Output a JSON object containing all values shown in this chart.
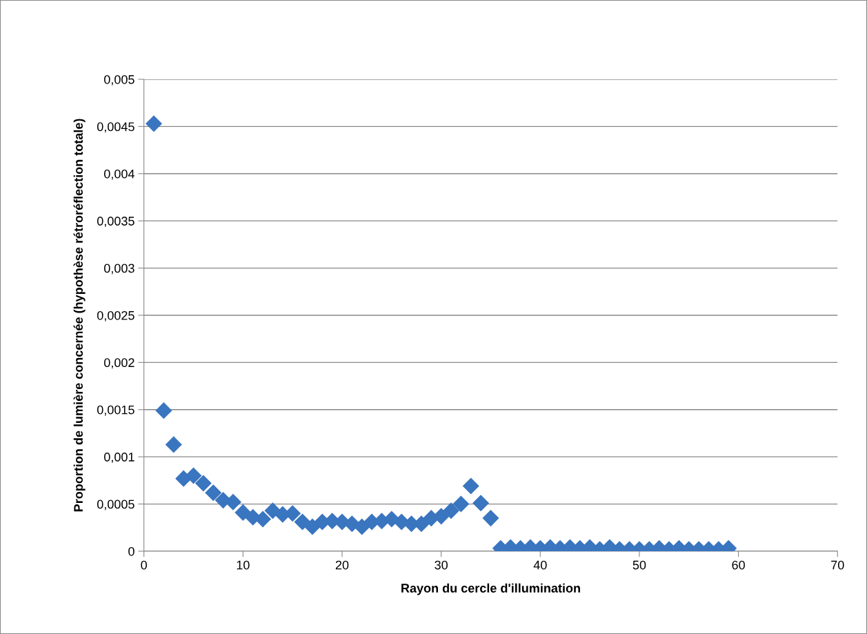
{
  "chart_data": {
    "type": "scatter",
    "xlabel": "Rayon du cercle d'illumination",
    "ylabel": "Proportion de lumière concernée (hypothèse rétroréflection totale)",
    "x": [
      1,
      2,
      3,
      4,
      5,
      6,
      7,
      8,
      9,
      10,
      11,
      12,
      13,
      14,
      15,
      16,
      17,
      18,
      19,
      20,
      21,
      22,
      23,
      24,
      25,
      26,
      27,
      28,
      29,
      30,
      31,
      32,
      33,
      34,
      35,
      36,
      37,
      38,
      39,
      40,
      41,
      42,
      43,
      44,
      45,
      46,
      47,
      48,
      49,
      50,
      51,
      52,
      53,
      54,
      55,
      56,
      57,
      58,
      59
    ],
    "series": [
      {
        "color": "#3a75bf",
        "values": [
          0.00453,
          0.00149,
          0.00113,
          0.00077,
          0.0008,
          0.00072,
          0.00062,
          0.00054,
          0.00052,
          0.00041,
          0.00036,
          0.00034,
          0.00043,
          0.00039,
          0.0004,
          0.00031,
          0.00026,
          0.00031,
          0.00032,
          0.00031,
          0.00029,
          0.00026,
          0.00031,
          0.00032,
          0.00034,
          0.00031,
          0.00029,
          0.00029,
          0.00035,
          0.00037,
          0.00043,
          0.0005,
          0.00069,
          0.00051,
          0.00035,
          3e-05,
          4e-05,
          3e-05,
          4e-05,
          3e-05,
          4e-05,
          3e-05,
          4e-05,
          3e-05,
          4e-05,
          2e-05,
          4e-05,
          2e-05,
          2e-05,
          2e-05,
          2e-05,
          3e-05,
          2e-05,
          3e-05,
          2e-05,
          2e-05,
          2e-05,
          2e-05,
          3e-05
        ]
      }
    ],
    "xlim": [
      0,
      70
    ],
    "xticks": [
      0,
      10,
      20,
      30,
      40,
      50,
      60,
      70
    ],
    "ylim": [
      0,
      0.005
    ],
    "yticks": [
      0,
      {
        "value": 0.0005,
        "label": "0,0005"
      },
      {
        "value": 0.001,
        "label": "0,001"
      },
      {
        "value": 0.0015,
        "label": "0,0015"
      },
      {
        "value": 0.002,
        "label": "0,002"
      },
      {
        "value": 0.0025,
        "label": "0,0025"
      },
      {
        "value": 0.003,
        "label": "0,003"
      },
      {
        "value": 0.0035,
        "label": "0,0035"
      },
      {
        "value": 0.004,
        "label": "0,004"
      },
      {
        "value": 0.0045,
        "label": "0,0045"
      },
      {
        "value": 0.005,
        "label": "0,005"
      }
    ],
    "grid": "y",
    "marker": "diamond",
    "legend": false
  }
}
